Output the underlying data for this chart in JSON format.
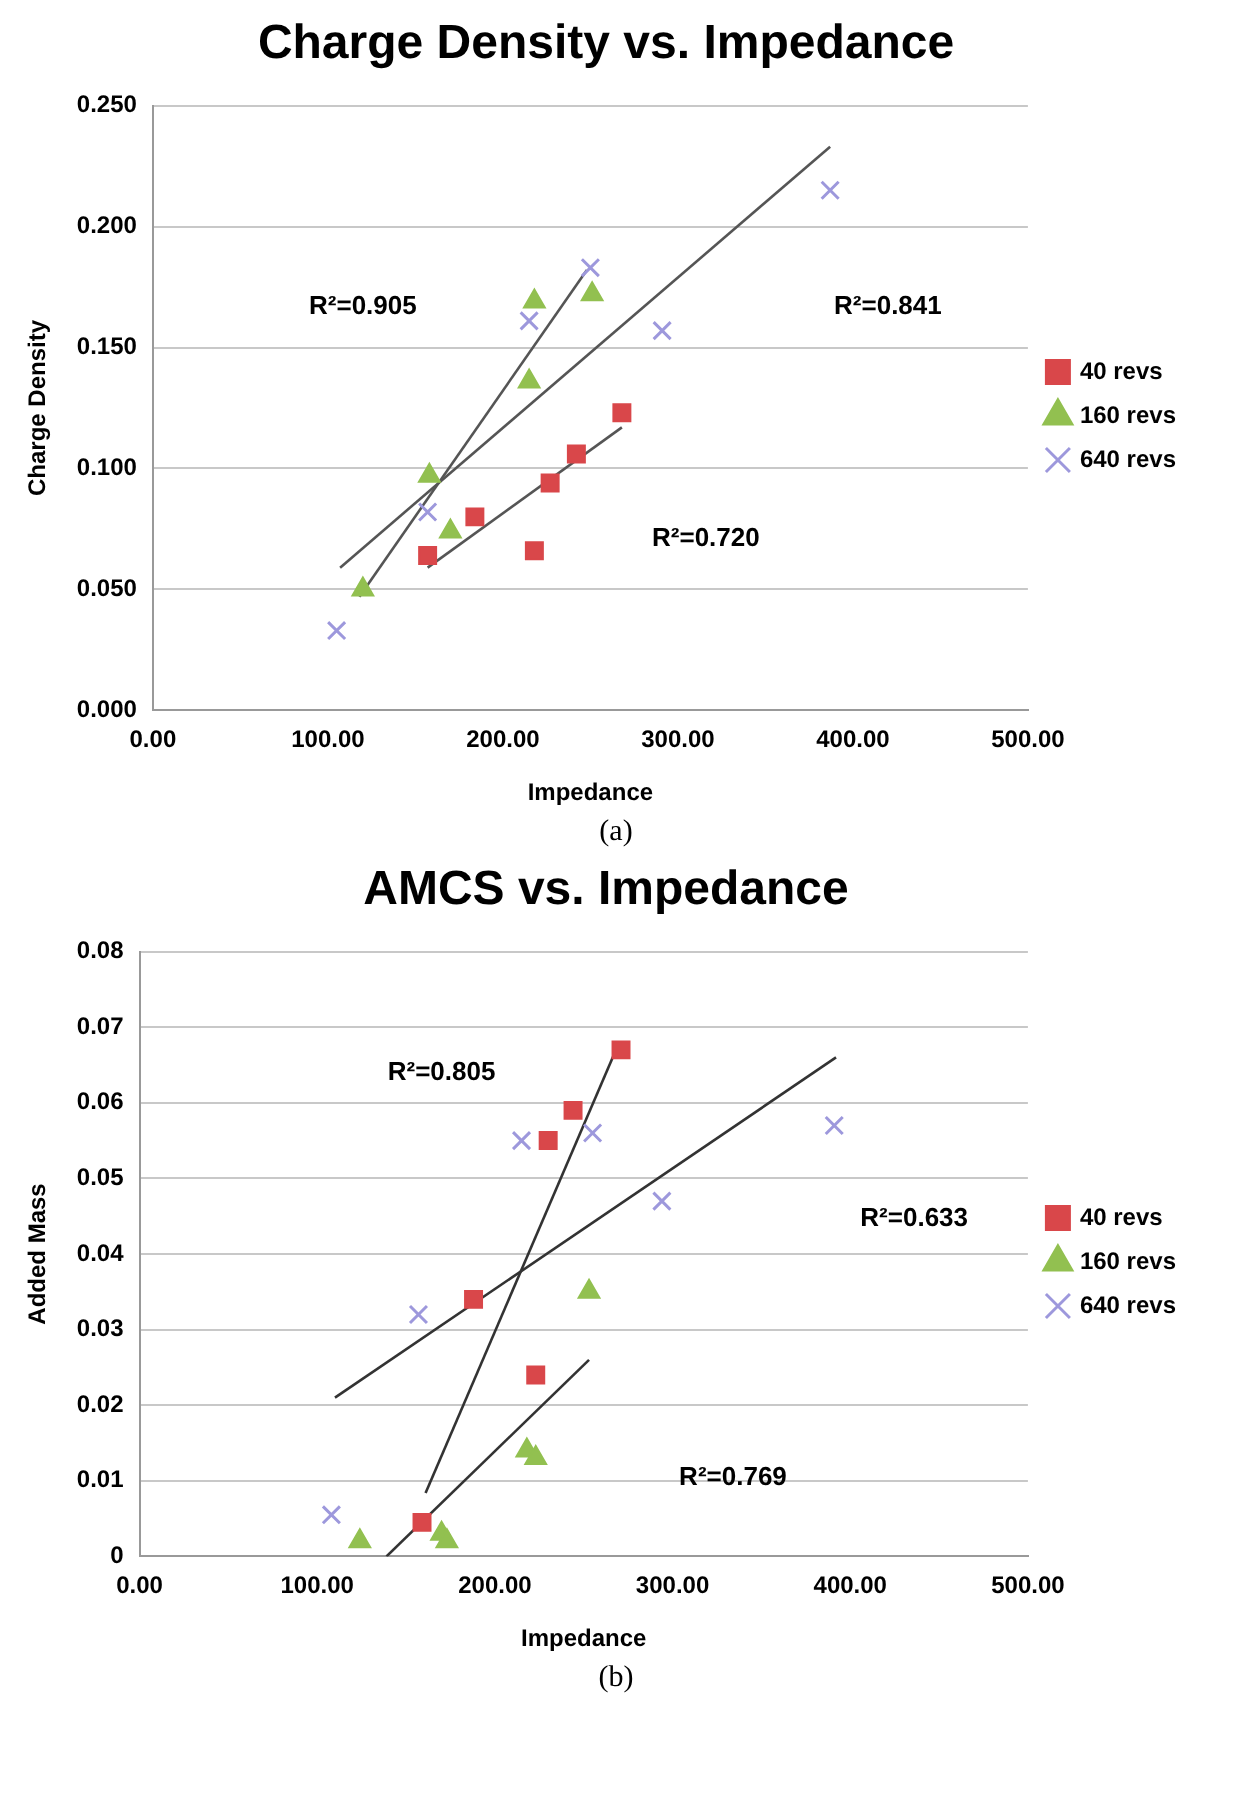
{
  "chart_data": [
    {
      "type": "scatter",
      "title": "Charge Density vs. Impedance",
      "xlabel": "Impedance",
      "ylabel": "Charge Density",
      "xlim": [
        0,
        500
      ],
      "ylim": [
        0,
        0.25
      ],
      "xticks": [
        {
          "value": 0,
          "label": "0.00"
        },
        {
          "value": 100,
          "label": "100.00"
        },
        {
          "value": 200,
          "label": "200.00"
        },
        {
          "value": 300,
          "label": "300.00"
        },
        {
          "value": 400,
          "label": "400.00"
        },
        {
          "value": 500,
          "label": "500.00"
        }
      ],
      "yticks": [
        {
          "value": 0,
          "label": "0.000"
        },
        {
          "value": 0.05,
          "label": "0.050"
        },
        {
          "value": 0.1,
          "label": "0.100"
        },
        {
          "value": 0.15,
          "label": "0.150"
        },
        {
          "value": 0.2,
          "label": "0.200"
        },
        {
          "value": 0.25,
          "label": "0.250"
        }
      ],
      "grid": "y",
      "legend": "right",
      "series": [
        {
          "name": "40 revs",
          "type": "scatter",
          "marker": "square",
          "color": "#d9474a",
          "x": [
            157,
            184,
            218,
            227,
            242,
            268
          ],
          "values": [
            0.064,
            0.08,
            0.066,
            0.094,
            0.106,
            0.123
          ]
        },
        {
          "name": "160 revs",
          "type": "scatter",
          "marker": "triangle",
          "color": "#92c050",
          "x": [
            120,
            158,
            170,
            215,
            218,
            251
          ],
          "values": [
            0.05,
            0.097,
            0.074,
            0.136,
            0.169,
            0.172
          ]
        },
        {
          "name": "640 revs",
          "type": "scatter",
          "marker": "cross",
          "color": "#9d98dc",
          "x": [
            105,
            157,
            215,
            250,
            291,
            387
          ],
          "values": [
            0.033,
            0.082,
            0.161,
            0.183,
            0.157,
            0.215
          ]
        },
        {
          "type": "line",
          "marker": "none",
          "line_style": "solid",
          "color": "#555555",
          "x": [
            157,
            268
          ],
          "values": [
            0.059,
            0.117
          ]
        },
        {
          "type": "line",
          "marker": "none",
          "line_style": "solid",
          "color": "#555555",
          "x": [
            118,
            248
          ],
          "values": [
            0.047,
            0.182
          ]
        },
        {
          "type": "line",
          "marker": "none",
          "line_style": "solid",
          "color": "#555555",
          "x": [
            107,
            387
          ],
          "values": [
            0.059,
            0.233
          ]
        }
      ],
      "annotations": [
        "R²=0.905",
        "R²=0.841",
        "R²=0.720",
        "(a)"
      ]
    },
    {
      "type": "scatter",
      "title": "AMCS vs. Impedance",
      "xlabel": "Impedance",
      "ylabel": "Added Mass",
      "xlim": [
        0,
        500
      ],
      "ylim": [
        0,
        0.08
      ],
      "xticks": [
        {
          "value": 0,
          "label": "0.00"
        },
        {
          "value": 100,
          "label": "100.00"
        },
        {
          "value": 200,
          "label": "200.00"
        },
        {
          "value": 300,
          "label": "300.00"
        },
        {
          "value": 400,
          "label": "400.00"
        },
        {
          "value": 500,
          "label": "500.00"
        }
      ],
      "yticks": [
        0,
        0.01,
        0.02,
        0.03,
        0.04,
        0.05,
        0.06,
        0.07,
        0.08
      ],
      "grid": "y",
      "legend": "right",
      "series": [
        {
          "name": "40 revs",
          "type": "scatter",
          "marker": "square",
          "color": "#d9474a",
          "x": [
            159,
            188,
            223,
            230,
            244,
            271
          ],
          "values": [
            0.0045,
            0.034,
            0.024,
            0.055,
            0.059,
            0.067
          ]
        },
        {
          "name": "160 revs",
          "type": "scatter",
          "marker": "triangle",
          "color": "#92c050",
          "x": [
            124,
            170,
            173,
            218,
            223,
            253
          ],
          "values": [
            0.002,
            0.003,
            0.002,
            0.014,
            0.013,
            0.035
          ]
        },
        {
          "name": "640 revs",
          "type": "scatter",
          "marker": "cross",
          "color": "#9d98dc",
          "x": [
            108,
            157,
            215,
            255,
            294,
            391
          ],
          "values": [
            0.0055,
            0.032,
            0.055,
            0.056,
            0.047,
            0.057
          ]
        },
        {
          "type": "line",
          "marker": "none",
          "line_style": "solid",
          "color": "#333333",
          "x": [
            161,
            270
          ],
          "values": [
            0.0084,
            0.068
          ]
        },
        {
          "type": "line",
          "marker": "none",
          "line_style": "solid",
          "color": "#333333",
          "x": [
            139,
            253
          ],
          "values": [
            0,
            0.026
          ]
        },
        {
          "type": "line",
          "marker": "none",
          "line_style": "solid",
          "color": "#333333",
          "x": [
            110,
            392
          ],
          "values": [
            0.021,
            0.066
          ]
        }
      ],
      "annotations": [
        "R²=0.805",
        "R²=0.633",
        "R²=0.769",
        "(b)"
      ]
    }
  ]
}
